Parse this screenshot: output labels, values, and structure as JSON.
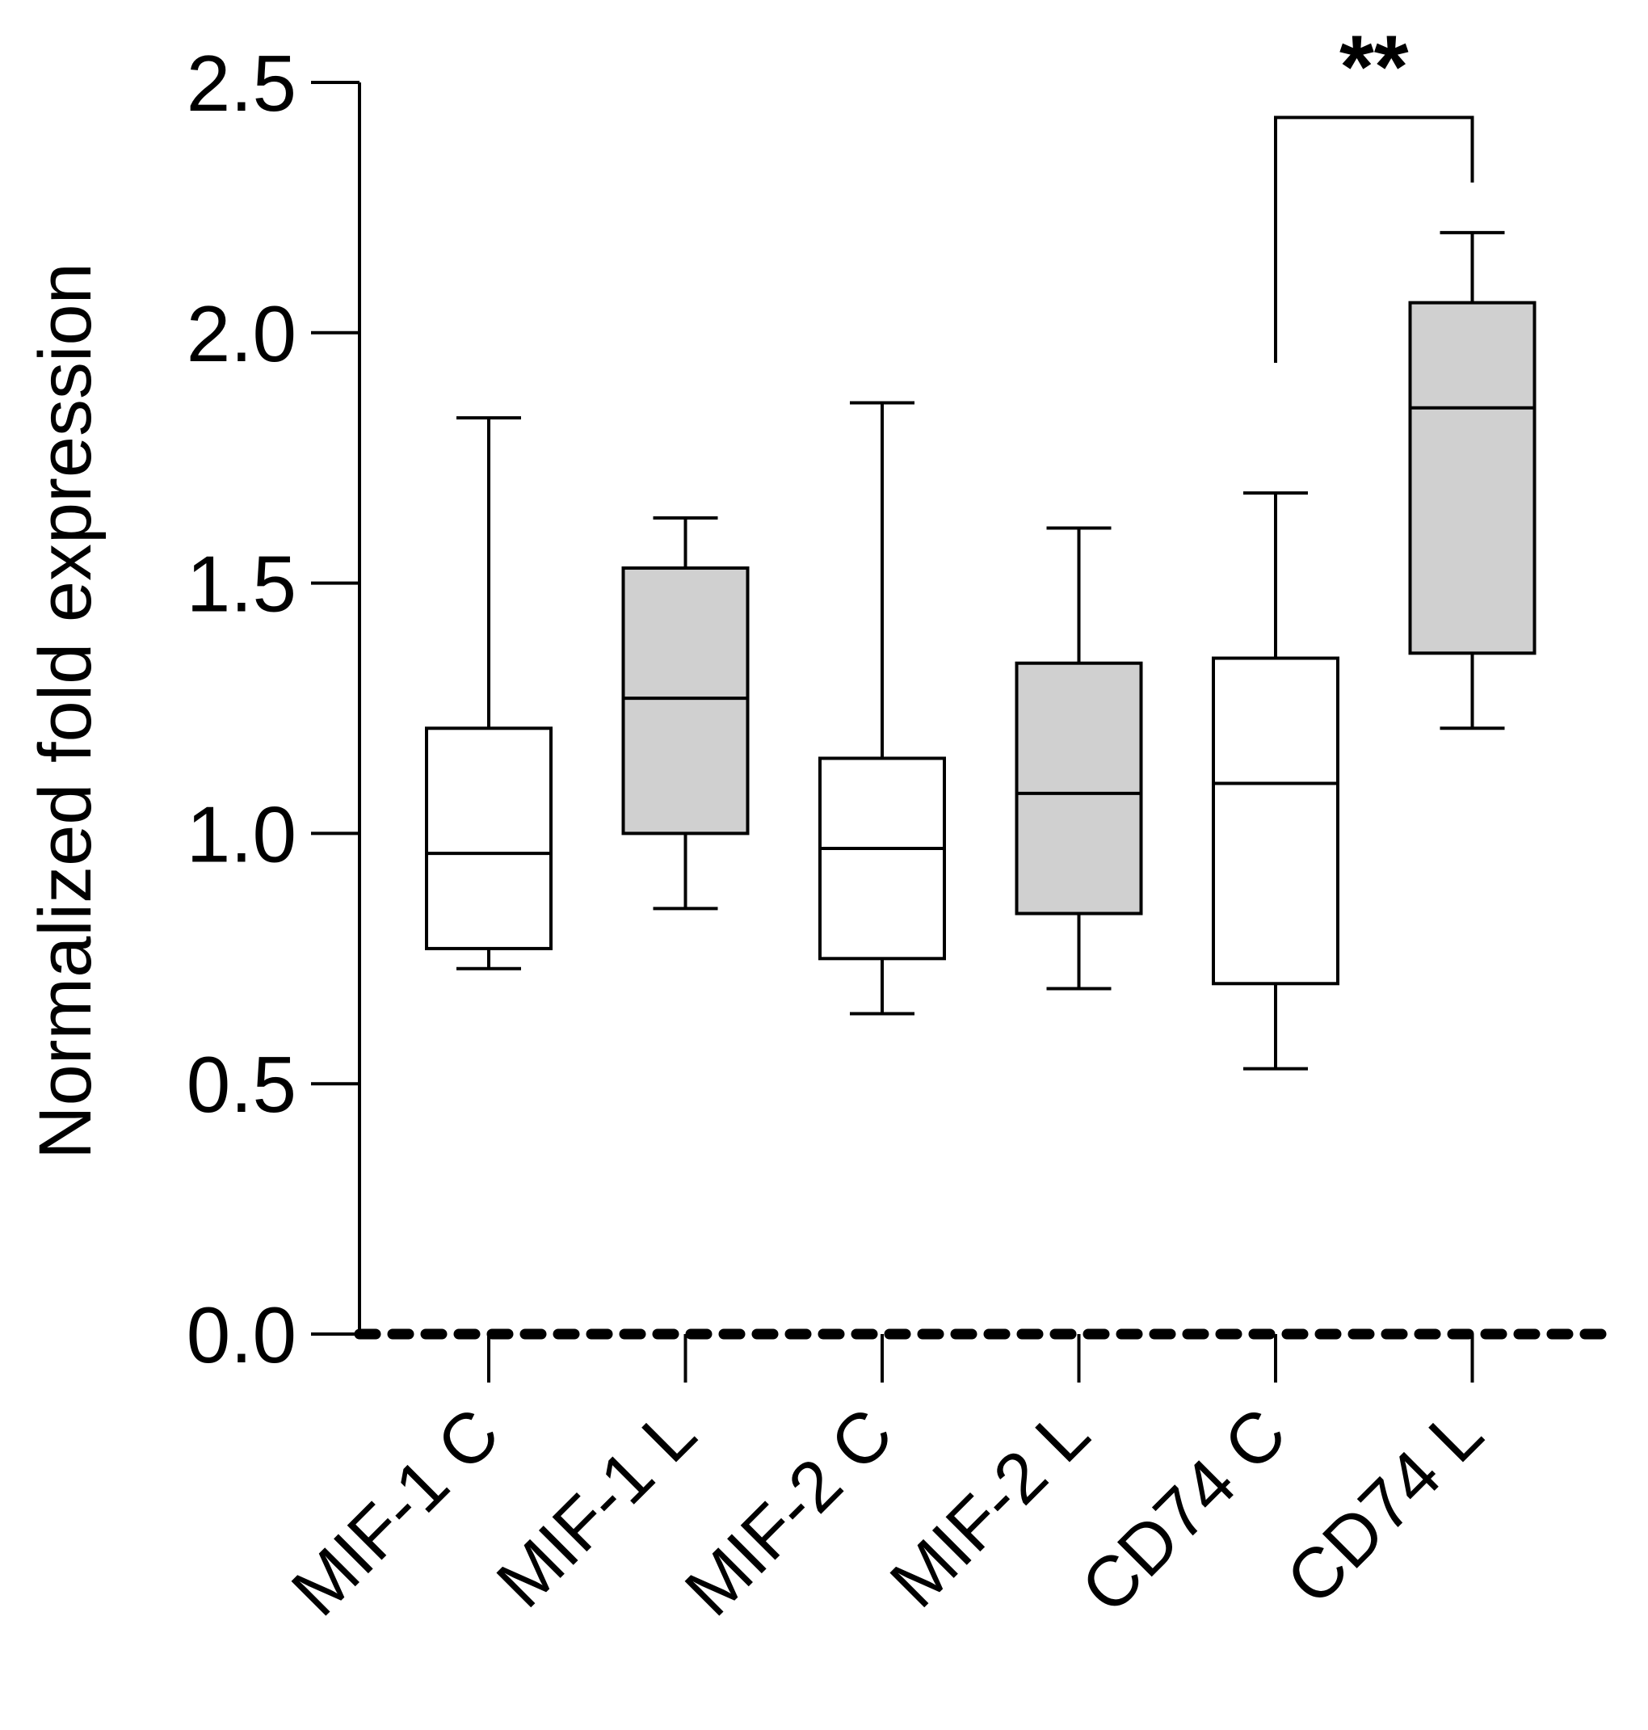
{
  "chart_data": {
    "type": "box",
    "title": "",
    "xlabel": "",
    "ylabel": "Normalized fold expression",
    "ylim": [
      0,
      2.5
    ],
    "yticks": [
      "0.0",
      "0.5",
      "1.0",
      "1.5",
      "2.0",
      "2.5"
    ],
    "categories": [
      "MIF-1 C",
      "MIF-1 L",
      "MIF-2 C",
      "MIF-2 L",
      "CD74 C",
      "CD74 L"
    ],
    "boxes": [
      {
        "label": "MIF-1 C",
        "min": 0.73,
        "q1": 0.77,
        "median": 0.96,
        "q3": 1.21,
        "max": 1.83,
        "fill": "#ffffff"
      },
      {
        "label": "MIF-1 L",
        "min": 0.85,
        "q1": 1.0,
        "median": 1.27,
        "q3": 1.53,
        "max": 1.63,
        "fill": "#d0d0d0"
      },
      {
        "label": "MIF-2 C",
        "min": 0.64,
        "q1": 0.75,
        "median": 0.97,
        "q3": 1.15,
        "max": 1.86,
        "fill": "#ffffff"
      },
      {
        "label": "MIF-2 L",
        "min": 0.69,
        "q1": 0.84,
        "median": 1.08,
        "q3": 1.34,
        "max": 1.61,
        "fill": "#d0d0d0"
      },
      {
        "label": "CD74 C",
        "min": 0.53,
        "q1": 0.7,
        "median": 1.1,
        "q3": 1.35,
        "max": 1.68,
        "fill": "#ffffff"
      },
      {
        "label": "CD74 L",
        "min": 1.21,
        "q1": 1.36,
        "median": 1.85,
        "q3": 2.06,
        "max": 2.2,
        "fill": "#d0d0d0"
      }
    ],
    "reference_line": {
      "y": 0.0,
      "style": "dotted"
    },
    "significance": [
      {
        "from": "CD74 C",
        "to": "CD74 L",
        "label": "**",
        "y": 2.43,
        "left_drop_to": 1.94,
        "right_drop_to": 2.3
      }
    ],
    "colors": {
      "line": "#000000",
      "control_fill": "#ffffff",
      "treated_fill": "#d0d0d0"
    }
  }
}
